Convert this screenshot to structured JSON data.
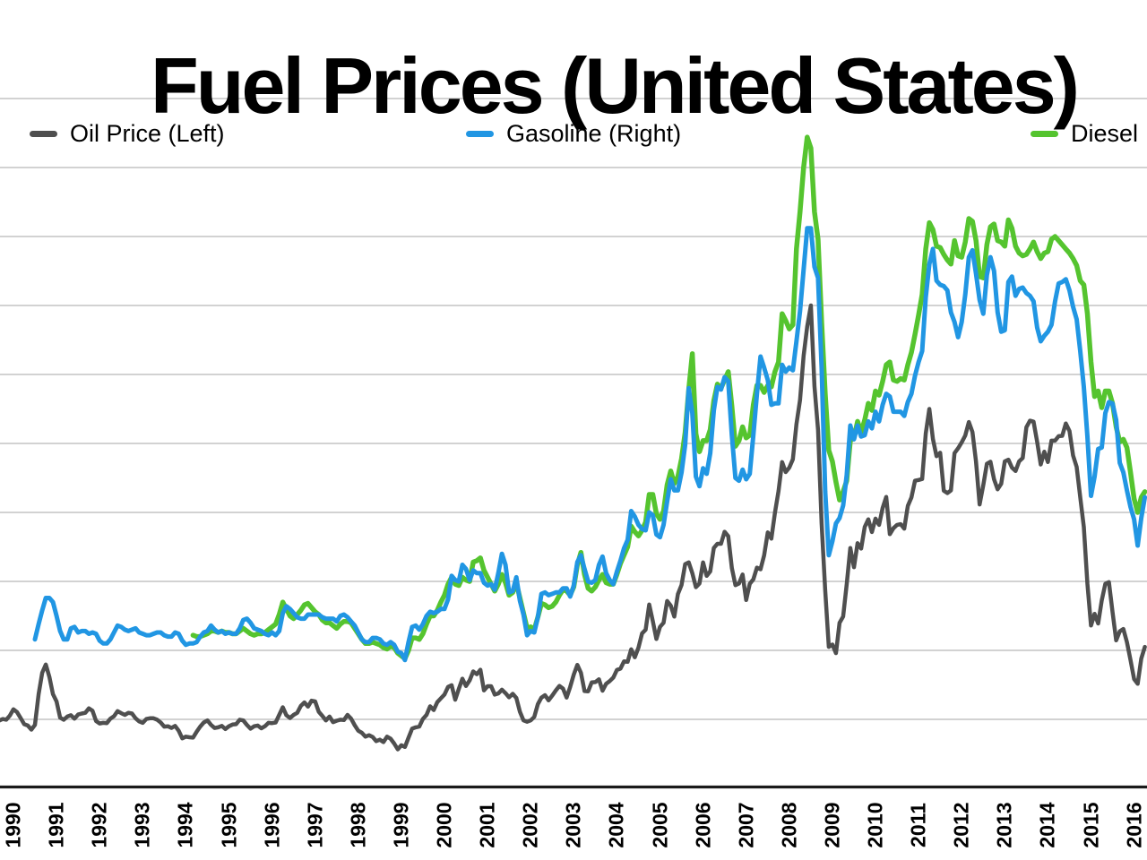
{
  "title": "Fuel Prices (United States)",
  "legend": {
    "items": [
      {
        "label": "Oil Price (Left)",
        "color": "#4f4f4f"
      },
      {
        "label": "Gasoline (Right)",
        "color": "#2196e3"
      },
      {
        "label": "Diesel",
        "color": "#55c42f"
      }
    ]
  },
  "colors": {
    "background": "#ffffff",
    "gridline": "#c3c3c3",
    "axis_line": "#1a1a1a",
    "title_text": "#000000"
  },
  "chart_data": {
    "type": "line",
    "title": "Fuel Prices (United States)",
    "grid": true,
    "legend_position": "top",
    "x_tick_labels": [
      "1990",
      "1991",
      "1992",
      "1993",
      "1994",
      "1995",
      "1996",
      "1997",
      "1998",
      "1999",
      "2000",
      "2001",
      "2002",
      "2003",
      "2004",
      "2005",
      "2006",
      "2007",
      "2008",
      "2009",
      "2010",
      "2011",
      "2012",
      "2013",
      "2014",
      "2015",
      "2016"
    ],
    "x_range": [
      1989.7,
      2016.3
    ],
    "left_axis": {
      "referenced_by": "Oil Price (Left)",
      "ylim": [
        0,
        200
      ],
      "gridline_step": 20,
      "tick_labels_visible": false
    },
    "right_axis": {
      "referenced_by": "Gasoline (Right) / Diesel",
      "ylim": [
        0,
        5
      ],
      "gridline_step": 0.5,
      "tick_labels_visible": false
    },
    "frequency": "monthly",
    "series": [
      {
        "name": "Oil Price (Left)",
        "axis": "left",
        "color": "#4f4f4f",
        "width": 4.5,
        "start_year": 1989,
        "start_month": 9,
        "values": [
          19.6,
          20.1,
          19.9,
          21.1,
          22.9,
          22.1,
          20.4,
          18.6,
          18.2,
          17.0,
          18.4,
          27.3,
          33.5,
          35.9,
          32.3,
          27.3,
          25.2,
          20.5,
          19.9,
          20.8,
          21.2,
          20.2,
          21.4,
          21.7,
          21.9,
          23.2,
          22.5,
          19.5,
          18.8,
          19.0,
          18.9,
          20.2,
          20.9,
          22.4,
          21.8,
          21.3,
          21.9,
          21.7,
          20.3,
          19.4,
          19.0,
          20.1,
          20.3,
          20.3,
          19.9,
          19.1,
          17.9,
          18.0,
          17.5,
          18.1,
          16.7,
          14.5,
          15.0,
          14.8,
          14.7,
          16.4,
          17.9,
          19.1,
          19.7,
          18.4,
          17.5,
          17.7,
          18.1,
          17.2,
          18.0,
          18.5,
          18.6,
          19.9,
          19.7,
          18.4,
          17.3,
          18.0,
          18.2,
          17.4,
          18.0,
          19.0,
          18.9,
          19.1,
          21.3,
          23.5,
          21.2,
          20.4,
          21.3,
          21.9,
          23.9,
          24.9,
          23.7,
          25.4,
          25.2,
          22.2,
          21.0,
          19.7,
          20.8,
          19.2,
          19.6,
          19.9,
          19.8,
          21.3,
          20.2,
          18.3,
          16.7,
          16.1,
          15.0,
          15.4,
          14.9,
          13.7,
          14.1,
          13.4,
          15.0,
          14.4,
          13.0,
          11.3,
          12.5,
          12.0,
          14.7,
          17.3,
          17.7,
          17.9,
          20.1,
          21.3,
          23.8,
          22.7,
          25.0,
          26.1,
          27.2,
          29.4,
          29.9,
          25.7,
          28.8,
          31.8,
          29.7,
          31.3,
          33.9,
          33.1,
          34.4,
          28.4,
          29.6,
          29.6,
          27.2,
          27.5,
          28.6,
          27.6,
          26.4,
          27.4,
          26.2,
          22.2,
          19.7,
          19.3,
          19.7,
          20.7,
          24.4,
          26.3,
          27.0,
          25.5,
          26.9,
          28.4,
          29.7,
          28.9,
          26.3,
          29.4,
          33.0,
          35.8,
          33.5,
          28.2,
          28.1,
          30.7,
          30.8,
          31.6,
          28.3,
          30.3,
          31.1,
          32.1,
          34.3,
          34.7,
          36.8,
          36.7,
          40.3,
          38.0,
          40.8,
          44.9,
          46.0,
          53.3,
          48.5,
          43.3,
          46.8,
          48.0,
          54.3,
          53.0,
          49.8,
          56.3,
          59.0,
          65.0,
          65.5,
          62.4,
          58.3,
          59.4,
          65.5,
          61.6,
          62.9,
          69.7,
          70.9,
          70.9,
          74.4,
          73.1,
          63.9,
          58.9,
          59.4,
          62.0,
          54.6,
          59.3,
          60.6,
          64.0,
          63.5,
          67.5,
          74.2,
          72.4,
          79.9,
          86.2,
          94.6,
          91.7,
          93.0,
          95.4,
          105.6,
          112.6,
          125.4,
          133.9,
          140.0,
          116.6,
          103.9,
          76.7,
          57.4,
          41.0,
          41.7,
          39.2,
          48.0,
          49.8,
          59.2,
          69.7,
          64.1,
          71.1,
          69.5,
          75.8,
          78.0,
          74.3,
          78.2,
          76.4,
          81.3,
          84.5,
          73.7,
          75.4,
          76.4,
          76.6,
          75.3,
          81.9,
          84.3,
          89.2,
          89.4,
          89.7,
          102.9,
          110.0,
          101.3,
          96.3,
          97.3,
          86.3,
          85.6,
          86.4,
          97.2,
          98.6,
          100.3,
          102.3,
          106.2,
          103.3,
          94.7,
          82.3,
          87.9,
          94.1,
          94.7,
          89.6,
          86.7,
          88.3,
          94.8,
          95.3,
          93.0,
          92.0,
          94.8,
          95.8,
          104.7,
          106.6,
          106.3,
          100.5,
          93.9,
          97.6,
          94.6,
          100.8,
          100.8,
          102.1,
          102.2,
          105.8,
          103.6,
          96.5,
          93.2,
          84.4,
          75.8,
          59.3,
          47.2,
          50.6,
          47.8,
          54.5,
          59.3,
          59.8,
          51.2,
          42.9,
          45.5,
          46.2,
          42.4,
          37.2,
          31.7,
          30.3,
          37.6,
          41.0
        ]
      },
      {
        "name": "Diesel",
        "axis": "right",
        "color": "#55c42f",
        "width": 5.5,
        "start_year": 1994,
        "start_month": 3,
        "values": [
          1.11,
          1.1,
          1.1,
          1.11,
          1.12,
          1.14,
          1.14,
          1.13,
          1.14,
          1.13,
          1.13,
          1.12,
          1.12,
          1.14,
          1.16,
          1.14,
          1.12,
          1.11,
          1.12,
          1.12,
          1.13,
          1.15,
          1.17,
          1.19,
          1.26,
          1.35,
          1.3,
          1.25,
          1.23,
          1.26,
          1.29,
          1.33,
          1.34,
          1.31,
          1.28,
          1.26,
          1.22,
          1.2,
          1.2,
          1.18,
          1.16,
          1.19,
          1.21,
          1.21,
          1.2,
          1.16,
          1.12,
          1.08,
          1.05,
          1.05,
          1.06,
          1.05,
          1.04,
          1.02,
          1.01,
          1.03,
          1.02,
          0.98,
          0.96,
          0.94,
          1.0,
          1.09,
          1.09,
          1.08,
          1.12,
          1.19,
          1.25,
          1.25,
          1.29,
          1.35,
          1.4,
          1.48,
          1.53,
          1.48,
          1.47,
          1.53,
          1.51,
          1.5,
          1.64,
          1.65,
          1.67,
          1.58,
          1.53,
          1.48,
          1.43,
          1.48,
          1.55,
          1.49,
          1.4,
          1.42,
          1.49,
          1.38,
          1.27,
          1.16,
          1.17,
          1.15,
          1.24,
          1.34,
          1.33,
          1.31,
          1.32,
          1.35,
          1.4,
          1.44,
          1.43,
          1.4,
          1.46,
          1.62,
          1.71,
          1.55,
          1.45,
          1.43,
          1.46,
          1.51,
          1.55,
          1.49,
          1.48,
          1.48,
          1.55,
          1.63,
          1.69,
          1.75,
          1.9,
          1.86,
          1.83,
          1.87,
          1.93,
          2.13,
          2.13,
          1.99,
          1.95,
          2.01,
          2.2,
          2.3,
          2.21,
          2.26,
          2.39,
          2.58,
          2.89,
          3.15,
          2.57,
          2.44,
          2.52,
          2.52,
          2.6,
          2.81,
          2.93,
          2.9,
          2.96,
          3.02,
          2.77,
          2.48,
          2.52,
          2.62,
          2.54,
          2.56,
          2.78,
          2.92,
          2.92,
          2.87,
          2.92,
          2.91,
          3.02,
          3.09,
          3.44,
          3.39,
          3.33,
          3.36,
          3.91,
          4.18,
          4.5,
          4.72,
          4.64,
          4.18,
          3.98,
          3.38,
          2.86,
          2.45,
          2.37,
          2.22,
          2.09,
          2.15,
          2.23,
          2.52,
          2.54,
          2.66,
          2.58,
          2.67,
          2.79,
          2.74,
          2.88,
          2.85,
          2.95,
          3.07,
          3.09,
          2.96,
          2.95,
          2.97,
          2.96,
          3.07,
          3.16,
          3.29,
          3.43,
          3.58,
          3.91,
          4.1,
          4.05,
          3.93,
          3.92,
          3.87,
          3.83,
          3.8,
          3.97,
          3.86,
          3.85,
          3.96,
          4.13,
          4.11,
          3.97,
          3.71,
          3.7,
          3.94,
          4.07,
          4.09,
          3.97,
          3.96,
          3.93,
          4.12,
          4.06,
          3.93,
          3.88,
          3.86,
          3.87,
          3.91,
          3.96,
          3.89,
          3.84,
          3.88,
          3.89,
          3.98,
          4.0,
          3.97,
          3.94,
          3.91,
          3.88,
          3.84,
          3.79,
          3.68,
          3.65,
          3.44,
          3.09,
          2.84,
          2.88,
          2.76,
          2.88,
          2.88,
          2.79,
          2.62,
          2.51,
          2.53,
          2.47,
          2.29,
          2.1,
          2.0,
          2.11,
          2.15
        ]
      },
      {
        "name": "Gasoline (Right)",
        "axis": "right",
        "color": "#2196e3",
        "width": 5,
        "start_year": 1990,
        "start_month": 7,
        "values": [
          1.08,
          1.19,
          1.29,
          1.38,
          1.38,
          1.35,
          1.25,
          1.14,
          1.08,
          1.08,
          1.16,
          1.17,
          1.13,
          1.14,
          1.14,
          1.12,
          1.13,
          1.12,
          1.07,
          1.05,
          1.05,
          1.08,
          1.13,
          1.18,
          1.17,
          1.15,
          1.14,
          1.15,
          1.16,
          1.13,
          1.12,
          1.11,
          1.11,
          1.12,
          1.13,
          1.13,
          1.11,
          1.1,
          1.1,
          1.13,
          1.12,
          1.07,
          1.04,
          1.05,
          1.05,
          1.06,
          1.1,
          1.13,
          1.14,
          1.18,
          1.15,
          1.13,
          1.14,
          1.12,
          1.13,
          1.12,
          1.12,
          1.16,
          1.22,
          1.23,
          1.2,
          1.16,
          1.15,
          1.14,
          1.12,
          1.11,
          1.13,
          1.11,
          1.14,
          1.27,
          1.32,
          1.3,
          1.27,
          1.24,
          1.23,
          1.23,
          1.26,
          1.26,
          1.26,
          1.26,
          1.24,
          1.23,
          1.23,
          1.23,
          1.21,
          1.25,
          1.26,
          1.24,
          1.21,
          1.18,
          1.13,
          1.08,
          1.06,
          1.06,
          1.09,
          1.09,
          1.08,
          1.05,
          1.04,
          1.06,
          1.04,
          0.99,
          0.98,
          0.93,
          1.06,
          1.17,
          1.18,
          1.15,
          1.19,
          1.25,
          1.28,
          1.27,
          1.28,
          1.3,
          1.3,
          1.37,
          1.54,
          1.51,
          1.5,
          1.62,
          1.59,
          1.51,
          1.58,
          1.56,
          1.56,
          1.49,
          1.47,
          1.48,
          1.44,
          1.56,
          1.7,
          1.62,
          1.42,
          1.43,
          1.53,
          1.36,
          1.26,
          1.11,
          1.14,
          1.13,
          1.24,
          1.41,
          1.42,
          1.4,
          1.41,
          1.42,
          1.42,
          1.45,
          1.45,
          1.39,
          1.47,
          1.64,
          1.69,
          1.59,
          1.5,
          1.49,
          1.51,
          1.62,
          1.68,
          1.56,
          1.51,
          1.48,
          1.57,
          1.65,
          1.74,
          1.8,
          2.01,
          1.97,
          1.91,
          1.88,
          1.87,
          2.0,
          1.98,
          1.84,
          1.82,
          1.91,
          2.08,
          2.24,
          2.16,
          2.16,
          2.29,
          2.49,
          2.9,
          2.72,
          2.26,
          2.19,
          2.32,
          2.28,
          2.43,
          2.74,
          2.91,
          2.89,
          2.98,
          2.95,
          2.56,
          2.25,
          2.23,
          2.31,
          2.24,
          2.28,
          2.56,
          2.86,
          3.13,
          3.05,
          2.96,
          2.78,
          2.79,
          2.79,
          3.07,
          3.02,
          3.05,
          3.03,
          3.24,
          3.46,
          3.76,
          4.06,
          4.06,
          3.78,
          3.7,
          3.05,
          2.15,
          1.69,
          1.79,
          1.92,
          1.96,
          2.05,
          2.27,
          2.63,
          2.53,
          2.63,
          2.55,
          2.56,
          2.66,
          2.61,
          2.73,
          2.66,
          2.78,
          2.86,
          2.84,
          2.73,
          2.73,
          2.73,
          2.7,
          2.8,
          2.86,
          2.99,
          3.09,
          3.17,
          3.56,
          3.8,
          3.91,
          3.68,
          3.65,
          3.64,
          3.61,
          3.45,
          3.38,
          3.27,
          3.38,
          3.58,
          3.85,
          3.9,
          3.73,
          3.54,
          3.44,
          3.72,
          3.85,
          3.75,
          3.45,
          3.31,
          3.32,
          3.67,
          3.71,
          3.57,
          3.62,
          3.63,
          3.59,
          3.57,
          3.53,
          3.34,
          3.24,
          3.28,
          3.31,
          3.36,
          3.53,
          3.66,
          3.67,
          3.69,
          3.61,
          3.49,
          3.4,
          3.17,
          2.91,
          2.55,
          2.12,
          2.26,
          2.46,
          2.47,
          2.72,
          2.8,
          2.79,
          2.67,
          2.36,
          2.29,
          2.16,
          2.04,
          1.95,
          1.76,
          1.96,
          2.11
        ]
      }
    ]
  }
}
